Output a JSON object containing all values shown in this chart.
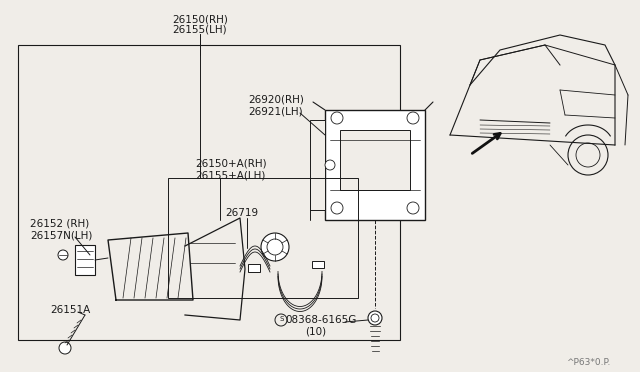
{
  "bg_color": "#f0ede8",
  "box_color": "#ffffff",
  "line_color": "#1a1a1a",
  "label_color": "#1a1a1a",
  "footer_text": "^P63*0.P.",
  "labels": {
    "26150RH": "26150(RH)",
    "26155LH": "26155(LH)",
    "26920RH": "26920(RH)",
    "26921LH": "26921(LH)",
    "26150ARH": "26150+A(RH)",
    "26155ALH": "26155+A(LH)",
    "26152RH": "26152 (RH)",
    "26157NLH": "26157N(LH)",
    "26719": "26719",
    "26151A": "26151A",
    "08368": "08368-6165G",
    "10": "(10)"
  }
}
